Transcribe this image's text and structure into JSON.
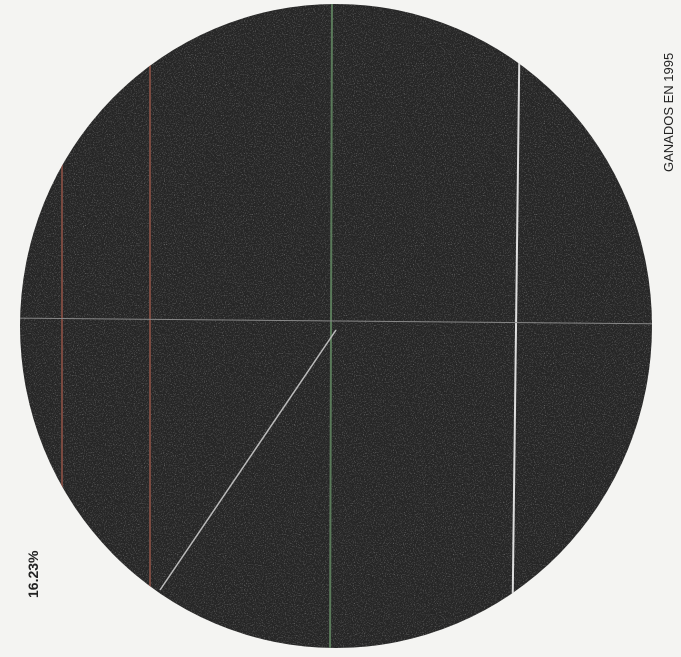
{
  "title": "GANADOS EN 1995",
  "labels": [
    {
      "text": "16.23%"
    }
  ]
}
